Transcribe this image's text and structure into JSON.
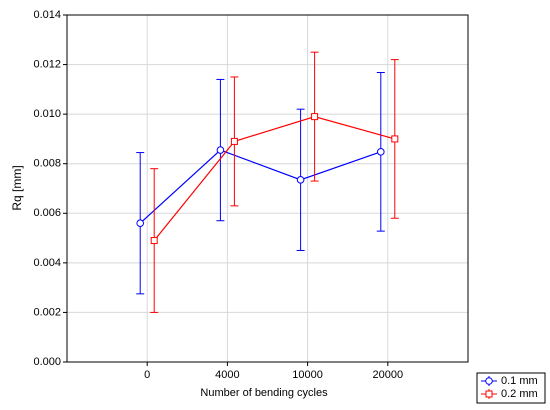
{
  "chart_data": {
    "type": "line",
    "x_label": "Number of bending cycles",
    "y_label": "Rq  [mm]",
    "categories": [
      "0",
      "4000",
      "10000",
      "20000"
    ],
    "series": [
      {
        "name": "0.1 mm",
        "color": "#0000ff",
        "marker": "circle",
        "values": [
          0.0056,
          0.00855,
          0.00735,
          0.00848
        ],
        "errors": [
          0.00285,
          0.00285,
          0.00285,
          0.0032
        ]
      },
      {
        "name": "0.2 mm",
        "color": "#ff0000",
        "marker": "square",
        "values": [
          0.0049,
          0.0089,
          0.0099,
          0.009
        ],
        "errors": [
          0.0029,
          0.0026,
          0.0026,
          0.0032
        ]
      }
    ],
    "ylim": [
      0,
      0.014
    ],
    "yticks": [
      {
        "value": 0,
        "label": "0.000"
      },
      {
        "value": 0.002,
        "label": "0.002"
      },
      {
        "value": 0.004,
        "label": "0.004"
      },
      {
        "value": 0.006,
        "label": "0.006"
      },
      {
        "value": 0.008,
        "label": "0.008"
      },
      {
        "value": 0.01,
        "label": "0.010"
      },
      {
        "value": 0.012,
        "label": "0.012"
      },
      {
        "value": 0.014,
        "label": "0.014"
      }
    ],
    "grid": true,
    "legend": "bottom-right"
  }
}
